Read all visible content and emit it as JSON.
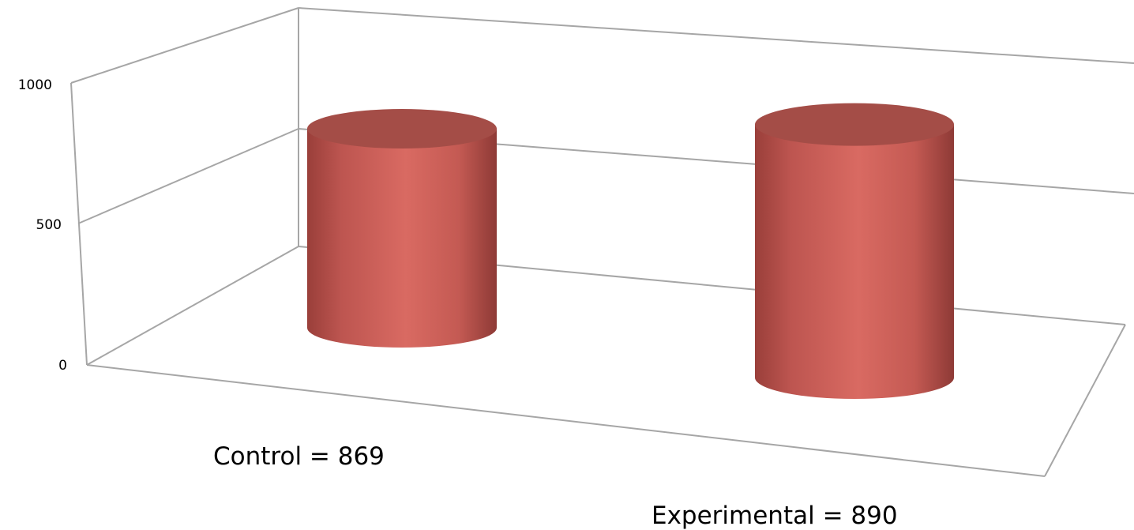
{
  "chart_data": {
    "type": "bar",
    "style": "3d-cylinder",
    "categories": [
      "Control",
      "Experimental"
    ],
    "values": [
      869,
      890
    ],
    "category_labels": [
      "Control = 869",
      "Experimental = 890"
    ],
    "ylim": [
      0,
      1000
    ],
    "yticks": [
      "0",
      "500",
      "1000"
    ],
    "title": "",
    "xlabel": "",
    "ylabel": "",
    "grid": true,
    "legend": "none",
    "bar_color": "#c0504d"
  }
}
